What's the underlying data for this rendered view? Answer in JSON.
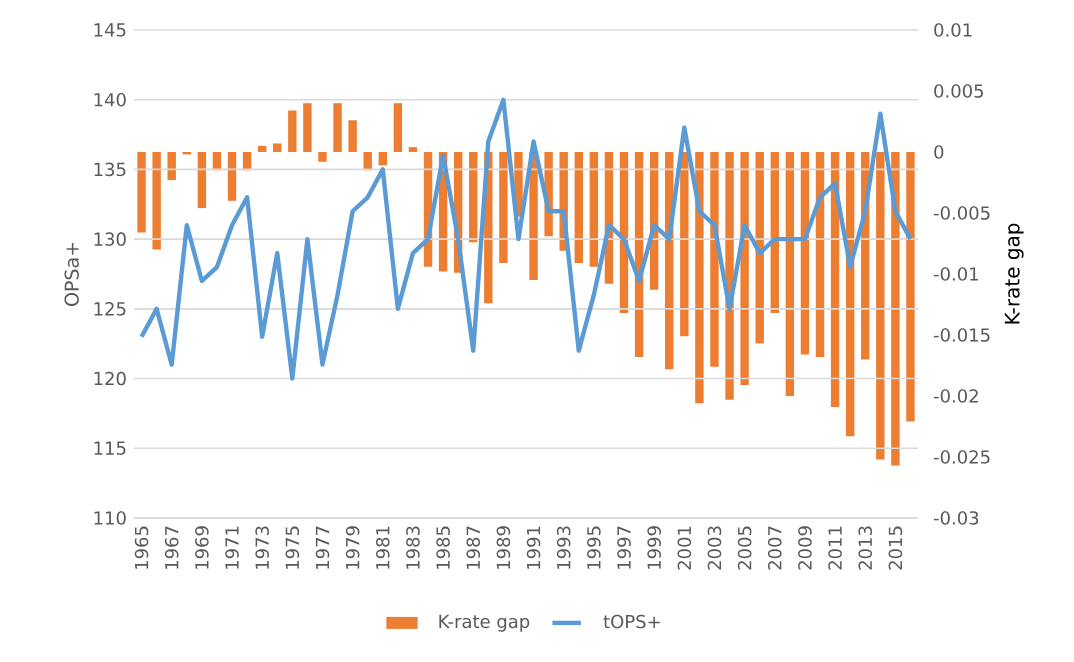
{
  "chart_data": {
    "type": "bar",
    "categories": [
      "1965",
      null,
      "1967",
      null,
      "1969",
      null,
      "1971",
      null,
      "1973",
      null,
      "1975",
      null,
      "1977",
      null,
      "1979",
      null,
      "1981",
      null,
      "1983",
      null,
      "1985",
      null,
      "1987",
      null,
      "1989",
      null,
      "1991",
      null,
      "1993",
      null,
      "1995",
      null,
      "1997",
      null,
      "1999",
      null,
      "2001",
      null,
      "2003",
      null,
      "2005",
      null,
      "2007",
      null,
      "2009",
      null,
      "2011",
      null,
      "2013",
      null,
      "2015",
      null
    ],
    "series": [
      {
        "name": "K-rate gap",
        "axis": "y2",
        "color": "#ed7d31",
        "values": [
          -0.0066,
          -0.008,
          -0.0023,
          -0.0002,
          -0.0046,
          -0.0015,
          -0.004,
          -0.0015,
          0.0005,
          0.0007,
          0.0034,
          0.004,
          -0.0008,
          0.004,
          0.0026,
          -0.0015,
          -0.0011,
          0.004,
          0.0004,
          -0.0094,
          -0.0098,
          -0.0099,
          -0.0074,
          -0.0124,
          -0.0091,
          -0.0053,
          -0.0105,
          -0.0069,
          -0.0081,
          -0.0091,
          -0.0094,
          -0.0108,
          -0.0132,
          -0.0168,
          -0.0113,
          -0.0178,
          -0.0151,
          -0.0206,
          -0.0176,
          -0.0203,
          -0.0191,
          -0.0157,
          -0.0132,
          -0.02,
          -0.0166,
          -0.0168,
          -0.0209,
          -0.0233,
          -0.017,
          -0.0252,
          -0.0257,
          -0.0221
        ]
      },
      {
        "name": "tOPS+",
        "type": "line",
        "axis": "y",
        "color": "#5b9bd5",
        "values": [
          123,
          125,
          121,
          131,
          127,
          128,
          131,
          133,
          123,
          129,
          120,
          130,
          121,
          126,
          132,
          133,
          135,
          125,
          129,
          130,
          136,
          130,
          122,
          137,
          140,
          130,
          137,
          132,
          132,
          122,
          126,
          131,
          130,
          127,
          131,
          130,
          138,
          132,
          131,
          125,
          131,
          129,
          130,
          130,
          130,
          133,
          134,
          128,
          132,
          139,
          132,
          130
        ]
      }
    ],
    "ylabel": "OPSa+",
    "y2label": "K-rate gap",
    "ylim": [
      110,
      145
    ],
    "yticks": [
      110,
      115,
      120,
      125,
      130,
      135,
      140,
      145
    ],
    "y2lim": [
      -0.03,
      0.01
    ],
    "y2ticks": [
      -0.03,
      -0.025,
      -0.02,
      -0.015,
      -0.01,
      -0.005,
      0,
      0.005,
      0.01
    ],
    "grid": "y",
    "legend": "bottom",
    "line_style": "solid",
    "marker": "none"
  }
}
